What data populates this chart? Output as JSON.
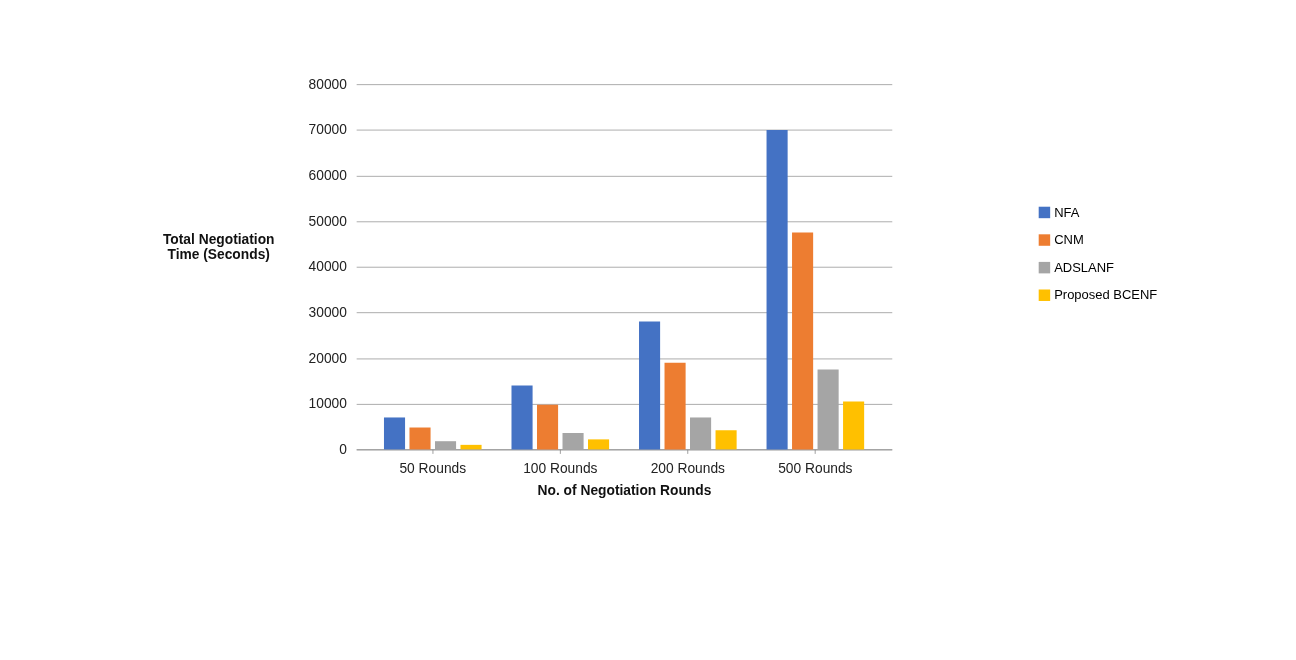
{
  "chart_data": {
    "type": "bar",
    "xlabel": "No. of Negotiation Rounds",
    "ylabel": "Total Negotiation Time (Seconds)",
    "categories": [
      "50 Rounds",
      "100 Rounds",
      "200 Rounds",
      "500 Rounds"
    ],
    "series": [
      {
        "name": "NFA",
        "color": "#4472c4",
        "values": [
          7000,
          14000,
          28000,
          70000
        ]
      },
      {
        "name": "CNM",
        "color": "#ed7d31",
        "values": [
          4800,
          9800,
          19000,
          47500
        ]
      },
      {
        "name": "ADSLANF",
        "color": "#a5a5a5",
        "values": [
          1800,
          3600,
          7000,
          17500
        ]
      },
      {
        "name": "Proposed BCENF",
        "color": "#ffc000",
        "values": [
          1000,
          2200,
          4200,
          10500
        ]
      }
    ],
    "ylim": [
      0,
      80000
    ],
    "yticks": [
      0,
      10000,
      20000,
      30000,
      40000,
      50000,
      60000,
      70000,
      80000
    ],
    "grid": "y",
    "legend": "right"
  }
}
